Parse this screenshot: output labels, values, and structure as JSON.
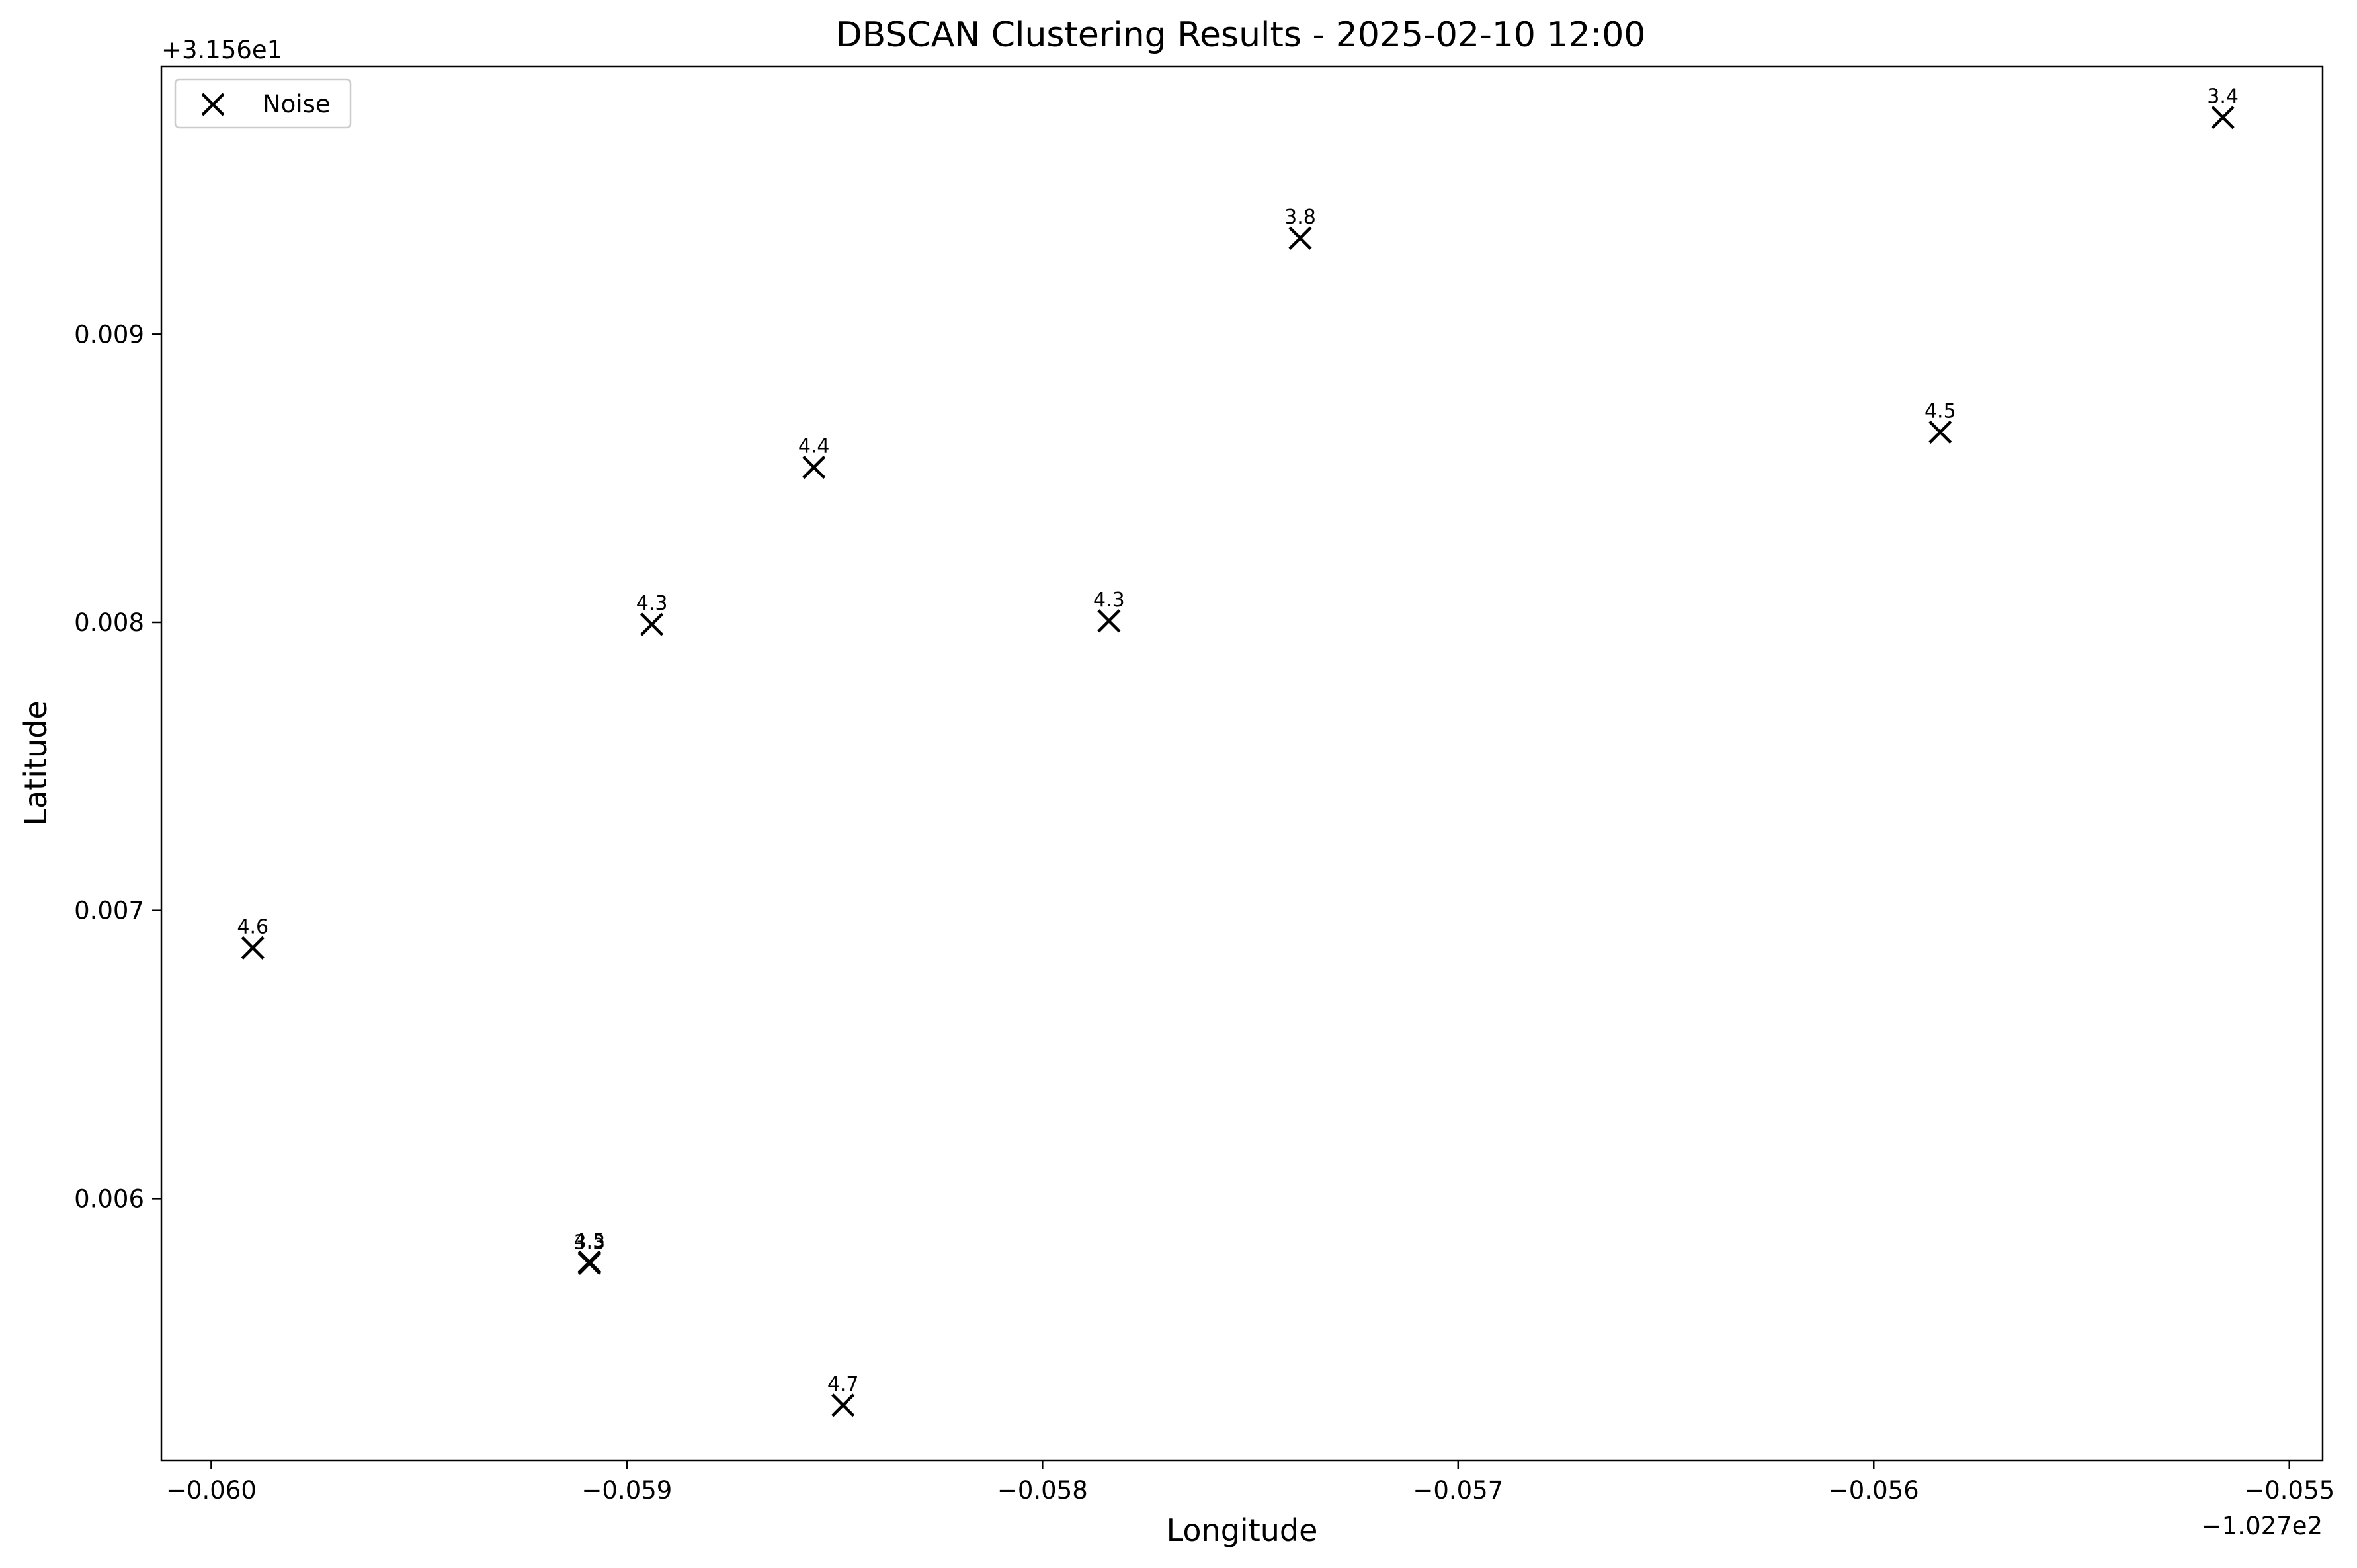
{
  "chart_data": {
    "type": "scatter",
    "title": "DBSCAN Clustering Results - 2025-02-10 12:00",
    "xlabel": "Longitude",
    "ylabel": "Latitude",
    "x_offset_text": "−1.027e2",
    "y_offset_text": "+3.156e1",
    "x_offset": -102.7,
    "y_offset": 31.56,
    "xlim": [
      -0.06012,
      -0.05492
    ],
    "ylim": [
      0.005092,
      0.009928
    ],
    "x_ticks": [
      -0.06,
      -0.059,
      -0.058,
      -0.057,
      -0.056,
      -0.055
    ],
    "x_tick_labels": [
      "−0.060",
      "−0.059",
      "−0.058",
      "−0.057",
      "−0.056",
      "−0.055"
    ],
    "y_ticks": [
      0.006,
      0.007,
      0.008,
      0.009
    ],
    "y_tick_labels": [
      "0.006",
      "0.007",
      "0.008",
      "0.009"
    ],
    "grid": false,
    "legend_position": "top-left",
    "series": [
      {
        "name": "Noise",
        "marker": "x",
        "color": "#000000",
        "points": [
          {
            "x": -0.0599,
            "y": 0.00687,
            "label": "4.6"
          },
          {
            "x": -0.05909,
            "y": 0.00578,
            "label": "4.5"
          },
          {
            "x": -0.05909,
            "y": 0.005775,
            "label": "3.3"
          },
          {
            "x": -0.05894,
            "y": 0.007993,
            "label": "4.3"
          },
          {
            "x": -0.05855,
            "y": 0.008538,
            "label": "4.4"
          },
          {
            "x": -0.05848,
            "y": 0.005283,
            "label": "4.7"
          },
          {
            "x": -0.05784,
            "y": 0.008005,
            "label": "4.3"
          },
          {
            "x": -0.05738,
            "y": 0.009333,
            "label": "3.8"
          },
          {
            "x": -0.05584,
            "y": 0.00866,
            "label": "4.5"
          },
          {
            "x": -0.05516,
            "y": 0.009752,
            "label": "3.4"
          }
        ]
      }
    ]
  }
}
